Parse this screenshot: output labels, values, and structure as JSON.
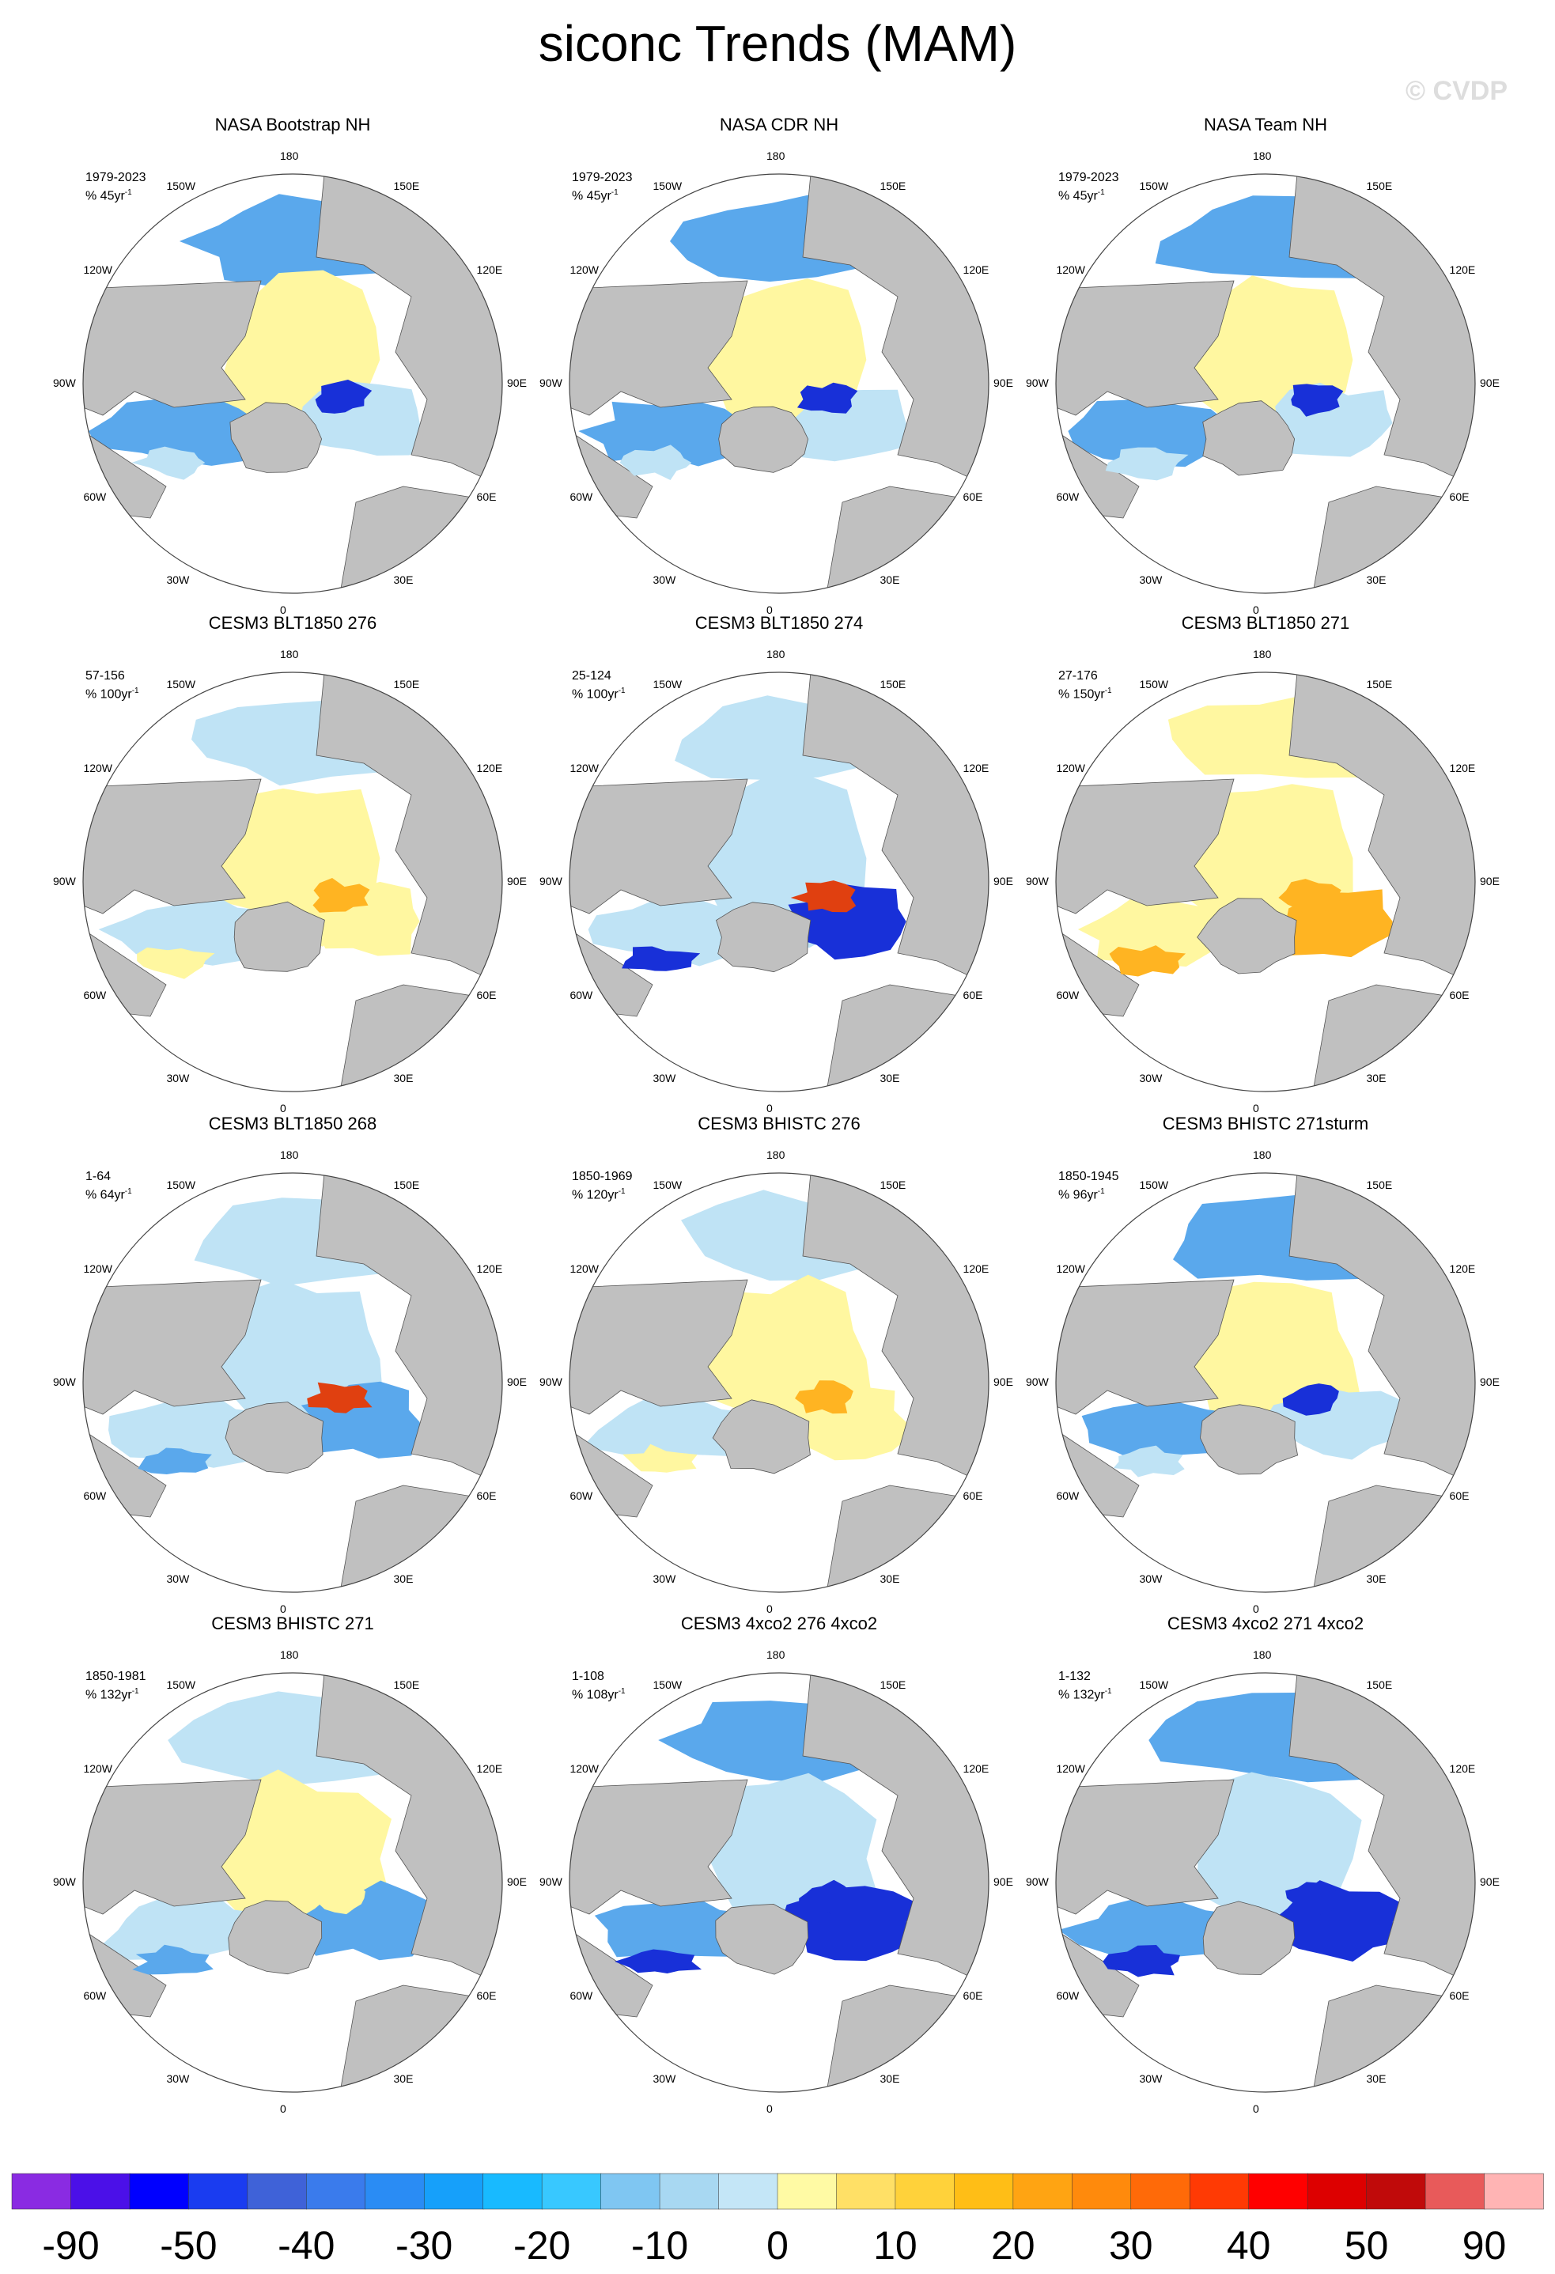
{
  "title": "siconc Trends (MAM)",
  "watermark": "© CVDP",
  "lon_labels": [
    "180",
    "150E",
    "120E",
    "90E",
    "60E",
    "30E",
    "0",
    "30W",
    "60W",
    "90W",
    "120W",
    "150W"
  ],
  "panels": [
    {
      "title": "NASA Bootstrap NH",
      "period": "1979-2023",
      "units": "% 45yr",
      "pattern": "obs"
    },
    {
      "title": "NASA CDR NH",
      "period": "1979-2023",
      "units": "% 45yr",
      "pattern": "obs"
    },
    {
      "title": "NASA Team NH",
      "period": "1979-2023",
      "units": "% 45yr",
      "pattern": "obs"
    },
    {
      "title": "CESM3 BLT1850 276",
      "period": "57-156",
      "units": "% 100yr",
      "pattern": "warm-west"
    },
    {
      "title": "CESM3 BLT1850 274",
      "period": "25-124",
      "units": "% 100yr",
      "pattern": "mixed-strong"
    },
    {
      "title": "CESM3 BLT1850 271",
      "period": "27-176",
      "units": "% 150yr",
      "pattern": "warm-broad"
    },
    {
      "title": "CESM3 BLT1850 268",
      "period": "1-64",
      "units": "% 64yr",
      "pattern": "warm-east"
    },
    {
      "title": "CESM3 BHISTC 276",
      "period": "1850-1969",
      "units": "% 120yr",
      "pattern": "warm-west"
    },
    {
      "title": "CESM3 BHISTC 271sturm",
      "period": "1850-1945",
      "units": "% 96yr",
      "pattern": "cool-north"
    },
    {
      "title": "CESM3 BHISTC 271",
      "period": "1850-1981",
      "units": "% 132yr",
      "pattern": "mild"
    },
    {
      "title": "CESM3 4xco2 276 4xco2",
      "period": "1-108",
      "units": "% 108yr",
      "pattern": "strong-decline"
    },
    {
      "title": "CESM3 4xco2 271 4xco2",
      "period": "1-132",
      "units": "% 132yr",
      "pattern": "strong-decline"
    }
  ],
  "colorbar": {
    "colors": [
      "#8a2be2",
      "#4b10e8",
      "#0000ff",
      "#1a3cf0",
      "#3f62d8",
      "#3a7bec",
      "#2a8cf4",
      "#16a0fa",
      "#18baff",
      "#38c8ff",
      "#7fc6f2",
      "#a8d8f2",
      "#c4e6f7",
      "#fffaa4",
      "#ffe066",
      "#ffd23a",
      "#ffbe16",
      "#ffa412",
      "#ff8a0c",
      "#ff6a08",
      "#ff3a04",
      "#ff0000",
      "#dd0000",
      "#c00a0a",
      "#e85a5a",
      "#ffb4b4"
    ],
    "labels": [
      "-90",
      "-50",
      "-40",
      "-30",
      "-20",
      "-10",
      "0",
      "10",
      "20",
      "30",
      "40",
      "50",
      "90"
    ]
  },
  "map_colors": {
    "land": "#c0c0c0",
    "ice_neg_light": "#bfe3f5",
    "ice_neg": "#5aa8ec",
    "ice_neg_strong": "#1830d8",
    "ice_pos_light": "#fff7a0",
    "ice_pos": "#ffb422",
    "ice_pos_strong": "#e04010"
  }
}
